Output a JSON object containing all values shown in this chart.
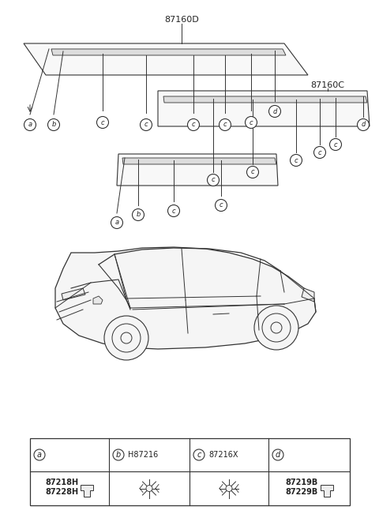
{
  "bg_color": "#ffffff",
  "line_color": "#333333",
  "text_color": "#222222",
  "label_87160D": "87160D",
  "label_87160C": "87160C",
  "part_a_1": "87218H",
  "part_a_2": "87228H",
  "part_b": "H87216",
  "part_c": "87216X",
  "part_d_1": "87219B",
  "part_d_2": "87229B",
  "figsize": [
    4.8,
    6.56
  ],
  "dpi": 100
}
